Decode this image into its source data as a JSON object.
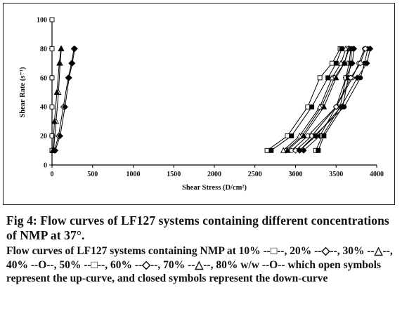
{
  "chart_data": {
    "type": "line",
    "xlabel": "Shear Stress (D/cm²)",
    "ylabel": "Shear Rate (s⁻¹)",
    "xlim": [
      0,
      4000
    ],
    "ylim": [
      0,
      100
    ],
    "xticks": [
      0,
      500,
      1000,
      1500,
      2000,
      2500,
      3000,
      3500,
      4000
    ],
    "yticks": [
      0,
      20,
      40,
      60,
      80,
      100
    ],
    "grid": false,
    "legend": "none",
    "series": [
      {
        "marker": "square",
        "filled": false,
        "values_x": [
          0,
          0,
          0,
          0,
          0,
          0
        ],
        "values_y": [
          10,
          20,
          40,
          60,
          80,
          100
        ]
      },
      {
        "marker": "diamond",
        "filled": false,
        "values_x": [
          30,
          80,
          140,
          200,
          240,
          270
        ],
        "values_y": [
          10,
          20,
          40,
          60,
          70,
          80
        ]
      },
      {
        "marker": "triangle",
        "filled": false,
        "values_x": [
          20,
          50,
          80,
          100,
          115
        ],
        "values_y": [
          10,
          30,
          50,
          70,
          80
        ]
      },
      {
        "marker": "diamond",
        "filled": true,
        "values_x": [
          40,
          100,
          160,
          210,
          250,
          280
        ],
        "values_y": [
          10,
          20,
          40,
          60,
          70,
          80
        ]
      },
      {
        "marker": "triangle",
        "filled": true,
        "values_x": [
          10,
          30,
          60,
          90,
          110
        ],
        "values_y": [
          10,
          30,
          50,
          70,
          80
        ]
      },
      {
        "marker": "square",
        "filled": false,
        "values_x": [
          2650,
          2900,
          3150,
          3300,
          3450,
          3550
        ],
        "values_y": [
          10,
          20,
          40,
          60,
          70,
          80
        ]
      },
      {
        "marker": "square",
        "filled": true,
        "values_x": [
          2700,
          2950,
          3200,
          3400,
          3500,
          3570
        ],
        "values_y": [
          10,
          20,
          40,
          60,
          70,
          80
        ]
      },
      {
        "marker": "diamond",
        "filled": false,
        "values_x": [
          2880,
          3080,
          3320,
          3480,
          3600,
          3650
        ],
        "values_y": [
          10,
          20,
          40,
          60,
          70,
          80
        ]
      },
      {
        "marker": "diamond",
        "filled": true,
        "values_x": [
          3100,
          3300,
          3500,
          3620,
          3700,
          3720
        ],
        "values_y": [
          10,
          20,
          40,
          60,
          70,
          80
        ]
      },
      {
        "marker": "triangle",
        "filled": false,
        "values_x": [
          2850,
          3050,
          3300,
          3450,
          3560,
          3620
        ],
        "values_y": [
          10,
          20,
          40,
          60,
          70,
          80
        ]
      },
      {
        "marker": "triangle",
        "filled": true,
        "values_x": [
          2900,
          3100,
          3350,
          3500,
          3600,
          3660
        ],
        "values_y": [
          10,
          20,
          40,
          60,
          70,
          80
        ]
      },
      {
        "marker": "square",
        "filled": false,
        "values_x": [
          3250,
          3330,
          3550,
          3620,
          3660,
          3680
        ],
        "values_y": [
          10,
          20,
          40,
          60,
          70,
          80
        ]
      },
      {
        "marker": "square",
        "filled": true,
        "values_x": [
          3280,
          3350,
          3580,
          3650,
          3680,
          3690
        ],
        "values_y": [
          10,
          20,
          40,
          60,
          70,
          80
        ]
      },
      {
        "marker": "circle",
        "filled": false,
        "values_x": [
          2950,
          3150,
          3500,
          3700,
          3780,
          3850
        ],
        "values_y": [
          10,
          20,
          40,
          60,
          70,
          80
        ]
      },
      {
        "marker": "circle",
        "filled": true,
        "values_x": [
          3050,
          3230,
          3600,
          3800,
          3850,
          3890
        ],
        "values_y": [
          10,
          20,
          40,
          60,
          70,
          80
        ]
      },
      {
        "marker": "diamond",
        "filled": false,
        "values_x": [
          3000,
          3200,
          3500,
          3680,
          3800,
          3860
        ],
        "values_y": [
          10,
          20,
          40,
          60,
          70,
          80
        ]
      },
      {
        "marker": "diamond",
        "filled": true,
        "values_x": [
          3050,
          3250,
          3560,
          3760,
          3880,
          3920
        ],
        "values_y": [
          10,
          20,
          40,
          60,
          70,
          80
        ]
      }
    ]
  },
  "caption": {
    "title": "Fig 4: Flow curves of LF127 systems containing different concentrations of NMP at 37°.",
    "body": "Flow curves of LF127 systems containing NMP at 10% --□--, 20% --◇--, 30% --△--, 40% --O--, 50% --□--, 60% --◇--, 70% --△--, 80% w/w --O-- which open symbols represent the up-curve, and closed symbols represent the down-curve"
  }
}
